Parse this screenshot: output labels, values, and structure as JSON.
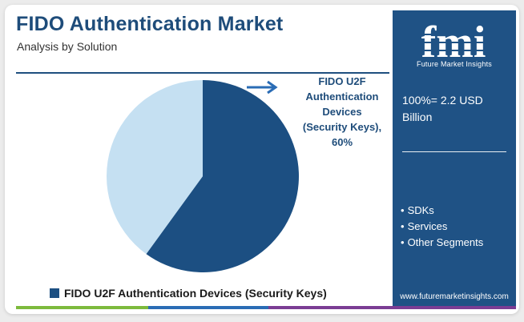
{
  "header": {
    "title": "FIDO Authentication Market",
    "subtitle": "Analysis by Solution"
  },
  "callout": {
    "text": "FIDO U2F\nAuthentication\nDevices\n(Security Keys),\n60%"
  },
  "legend": {
    "label": "FIDO U2F Authentication Devices (Security Keys)"
  },
  "panel": {
    "logo_letters": "fmi",
    "logo_tagline": "Future Market Insights",
    "total": "100%= 2.2 USD Billion",
    "segments": [
      "SDKs",
      "Services",
      "Other Segments"
    ],
    "bullet": "•",
    "website": "www.futuremarketinsights.com"
  },
  "colors": {
    "primary_dark": "#1c4f82",
    "secondary_light": "#c5e0f2",
    "panel_bg": "#1f5285",
    "title": "#1e4c7a",
    "accent_green": "#7dba3c",
    "accent_blue": "#2a6cb5",
    "accent_purple": "#7b3d94"
  },
  "icons": {
    "callout_arrow": "right-arrow-icon",
    "logo": "fmi-logo-icon"
  },
  "chart_data": {
    "type": "pie",
    "slices": [
      {
        "label": "FIDO U2F Authentication Devices (Security Keys)",
        "value": 60,
        "color": "#1c4f82"
      },
      {
        "value": 40,
        "color": "#c5e0f2"
      }
    ]
  }
}
